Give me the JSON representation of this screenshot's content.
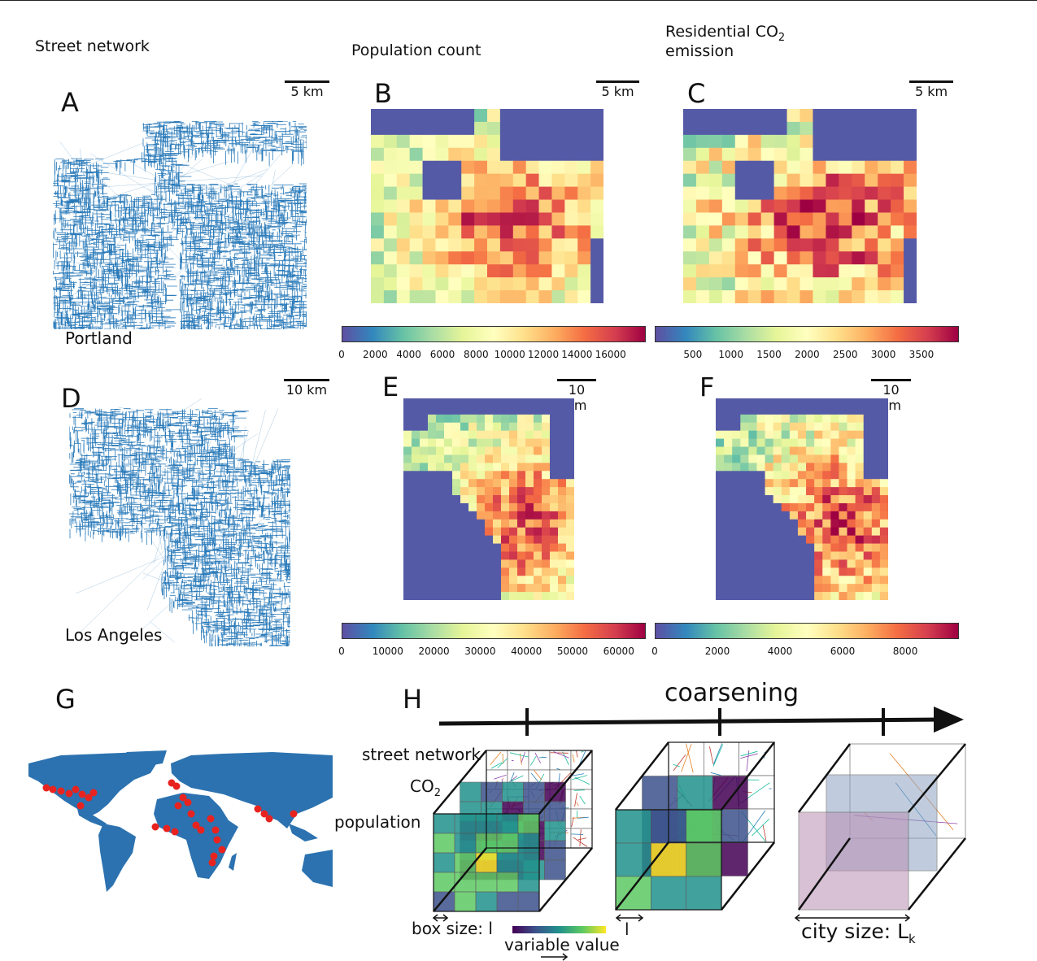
{
  "columns": {
    "street_network": "Street network",
    "population": "Population count",
    "co2_line1": "Residential CO",
    "co2_sub": "2",
    "co2_line2": "emission"
  },
  "panels": {
    "A": {
      "letter": "A",
      "scale": "5 km",
      "city": "Portland"
    },
    "B": {
      "letter": "B",
      "scale": "5 km"
    },
    "C": {
      "letter": "C",
      "scale": "5 km"
    },
    "D": {
      "letter": "D",
      "scale": "10 km",
      "city": "Los Angeles"
    },
    "E": {
      "letter": "E",
      "scale": "10 km"
    },
    "F": {
      "letter": "F",
      "scale": "10 km"
    },
    "G": {
      "letter": "G"
    },
    "H": {
      "letter": "H"
    }
  },
  "colorbars": {
    "B": {
      "range": [
        0,
        18000
      ],
      "ticks": [
        "0",
        "2000",
        "4000",
        "6000",
        "8000",
        "10000",
        "12000",
        "14000",
        "16000"
      ]
    },
    "C": {
      "range": [
        0,
        3970
      ],
      "ticks": [
        "500",
        "1000",
        "1500",
        "2000",
        "2500",
        "3000",
        "3500"
      ]
    },
    "E": {
      "range": [
        0,
        65500
      ],
      "ticks": [
        "0",
        "10000",
        "20000",
        "30000",
        "40000",
        "50000",
        "60000"
      ]
    },
    "F": {
      "range": [
        0,
        9660
      ],
      "ticks": [
        "0",
        "2000",
        "4000",
        "6000",
        "8000"
      ]
    }
  },
  "colormap": [
    "#5e4fa2",
    "#3288bd",
    "#66c2a5",
    "#abdda4",
    "#e6f598",
    "#ffffbf",
    "#fee08b",
    "#fdae61",
    "#f46d43",
    "#d53e4f",
    "#9e0142"
  ],
  "street_color": "#2b7bba",
  "map_color": "#2c72b0",
  "city_dot_color": "#e8231f",
  "schematic": {
    "coarsening": "coarsening",
    "street_network": "street network",
    "co2": "CO",
    "co2_sub": "2",
    "population": "population",
    "box_size": "box size: l",
    "l": "l",
    "variable_value": "variable value",
    "city_size": "city size: L",
    "city_size_sub": "k"
  }
}
